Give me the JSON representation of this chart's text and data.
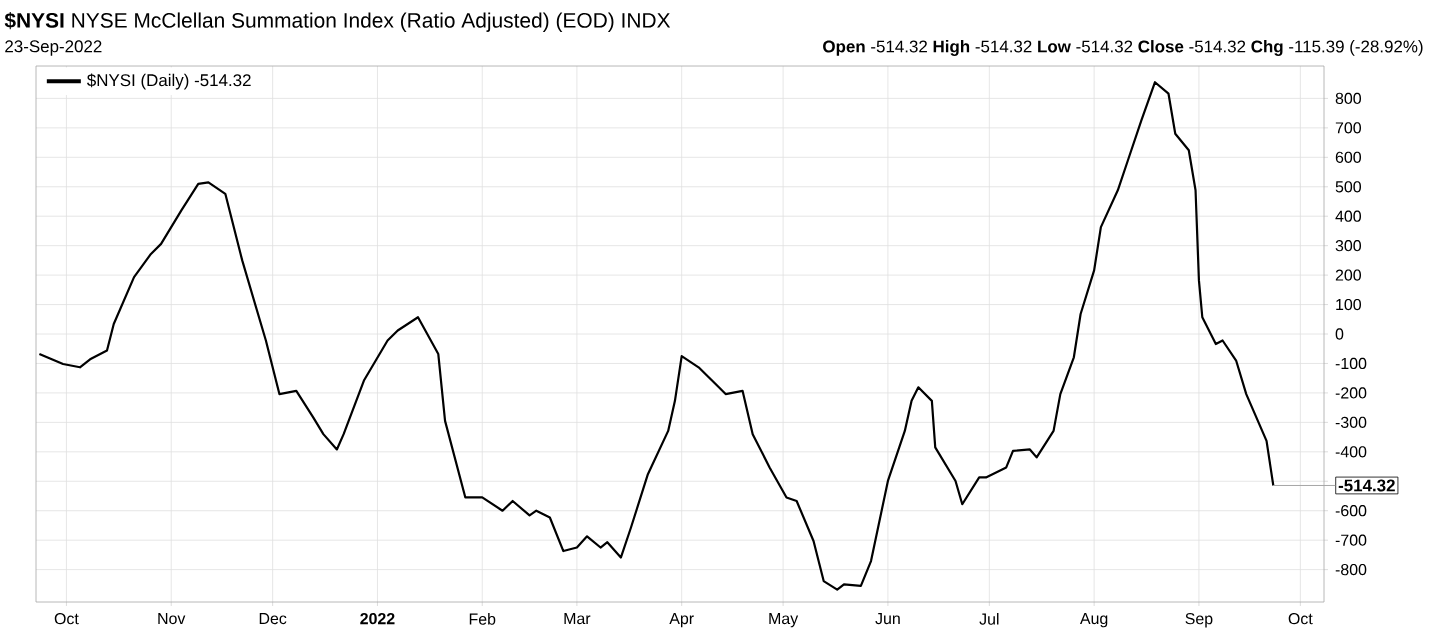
{
  "chart_data": {
    "type": "line",
    "title": "**$NYSI** NYSE McClellan Summation Index (Ratio Adjusted) (EOD) INDX",
    "subtitle": "23-Sep-2022",
    "annotations": [
      "**Open** -514.32 **High** -514.32 **Low** -514.32 **Close** -514.32 **Chg** -115.39 (-28.92%)",
      {
        "text": "-514.32",
        "x": "2022-09-23",
        "y": -514.32
      }
    ],
    "x": [
      "2021-09-23",
      "2021-09-30",
      "2021-10-05",
      "2021-10-08",
      "2021-10-13",
      "2021-10-15",
      "2021-10-21",
      "2021-10-26",
      "2021-10-29",
      "2021-11-04",
      "2021-11-09",
      "2021-11-12",
      "2021-11-17",
      "2021-11-22",
      "2021-11-29",
      "2021-12-03",
      "2021-12-08",
      "2021-12-13",
      "2021-12-16",
      "2021-12-20",
      "2021-12-22",
      "2021-12-28",
      "2022-01-04",
      "2022-01-07",
      "2022-01-13",
      "2022-01-19",
      "2022-01-21",
      "2022-01-27",
      "2022-02-01",
      "2022-02-07",
      "2022-02-10",
      "2022-02-15",
      "2022-02-17",
      "2022-02-21",
      "2022-02-25",
      "2022-03-01",
      "2022-03-04",
      "2022-03-08",
      "2022-03-10",
      "2022-03-14",
      "2022-03-17",
      "2022-03-22",
      "2022-03-28",
      "2022-03-30",
      "2022-04-01",
      "2022-04-06",
      "2022-04-12",
      "2022-04-14",
      "2022-04-19",
      "2022-04-22",
      "2022-04-27",
      "2022-05-02",
      "2022-05-05",
      "2022-05-10",
      "2022-05-13",
      "2022-05-17",
      "2022-05-19",
      "2022-05-24",
      "2022-05-27",
      "2022-06-01",
      "2022-06-06",
      "2022-06-08",
      "2022-06-10",
      "2022-06-14",
      "2022-06-15",
      "2022-06-21",
      "2022-06-23",
      "2022-06-28",
      "2022-06-30",
      "2022-07-06",
      "2022-07-08",
      "2022-07-13",
      "2022-07-15",
      "2022-07-20",
      "2022-07-22",
      "2022-07-26",
      "2022-07-28",
      "2022-08-01",
      "2022-08-03",
      "2022-08-08",
      "2022-08-11",
      "2022-08-15",
      "2022-08-19",
      "2022-08-23",
      "2022-08-25",
      "2022-08-29",
      "2022-08-31",
      "2022-09-01",
      "2022-09-02",
      "2022-09-06",
      "2022-09-08",
      "2022-09-12",
      "2022-09-15",
      "2022-09-21",
      "2022-09-23"
    ],
    "series": [
      {
        "name": "$NYSI (Daily) -514.32",
        "color": "#000000",
        "values": [
          -68,
          -102,
          -113,
          -86,
          -56,
          34,
          193,
          272,
          306,
          420,
          510,
          515,
          476,
          250,
          -22,
          -204,
          -193,
          -283,
          -340,
          -392,
          -340,
          -158,
          -22,
          12,
          57,
          -68,
          -295,
          -555,
          -555,
          -600,
          -567,
          -616,
          -600,
          -623,
          -737,
          -725,
          -687,
          -725,
          -707,
          -759,
          -657,
          -476,
          -329,
          -227,
          -75,
          -113,
          -181,
          -204,
          -193,
          -340,
          -453,
          -555,
          -567,
          -703,
          -839,
          -868,
          -850,
          -855,
          -771,
          -499,
          -329,
          -227,
          -181,
          -227,
          -385,
          -499,
          -578,
          -487,
          -487,
          -453,
          -397,
          -392,
          -419,
          -329,
          -204,
          -79,
          68,
          216,
          363,
          488,
          590,
          726,
          855,
          816,
          680,
          624,
          488,
          182,
          57,
          -34,
          -22,
          -90,
          -204,
          -363,
          -514.32
        ]
      }
    ],
    "xlim": [
      "2021-09-22",
      "2022-10-08"
    ],
    "xticks": [
      {
        "value": "2021-10-01",
        "label": "Oct"
      },
      {
        "value": "2021-11-01",
        "label": "Nov"
      },
      {
        "value": "2021-12-01",
        "label": "Dec"
      },
      {
        "value": "2022-01-01",
        "label": "2022"
      },
      {
        "value": "2022-02-01",
        "label": "Feb"
      },
      {
        "value": "2022-03-01",
        "label": "Mar"
      },
      {
        "value": "2022-04-01",
        "label": "Apr"
      },
      {
        "value": "2022-05-01",
        "label": "May"
      },
      {
        "value": "2022-06-01",
        "label": "Jun"
      },
      {
        "value": "2022-07-01",
        "label": "Jul"
      },
      {
        "value": "2022-08-01",
        "label": "Aug"
      },
      {
        "value": "2022-09-01",
        "label": "Sep"
      },
      {
        "value": "2022-10-01",
        "label": "Oct"
      }
    ],
    "ylim": [
      -910,
      910
    ],
    "yticks": [
      -800,
      -700,
      -600,
      {
        "value": -500,
        "label": null
      },
      -400,
      -300,
      -200,
      -100,
      0,
      100,
      200,
      300,
      400,
      500,
      600,
      700,
      800
    ],
    "grid": true,
    "legend": "top left",
    "marker": "none",
    "line_style": "solid"
  }
}
